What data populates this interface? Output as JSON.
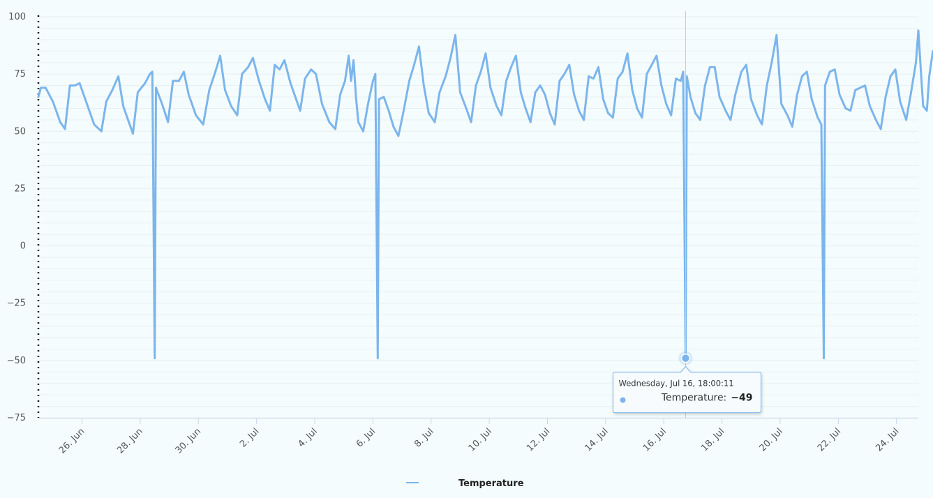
{
  "chart_data": {
    "type": "line",
    "title": "",
    "xlabel": "",
    "ylabel": "",
    "ylim": [
      -75,
      100
    ],
    "xlim": [
      "2025-06-24T12:00",
      "2025-07-24T18:00"
    ],
    "grid": true,
    "legend_position": "bottom-center",
    "yticks": [
      100,
      75,
      50,
      25,
      0,
      -25,
      -50,
      -75
    ],
    "ytick_labels": [
      "100",
      "75",
      "50",
      "25",
      "0",
      "−25",
      "−50",
      "−75"
    ],
    "xticks": [
      {
        "date": "2025-06-26",
        "label": "26. Jun"
      },
      {
        "date": "2025-06-28",
        "label": "28. Jun"
      },
      {
        "date": "2025-06-30",
        "label": "30. Jun"
      },
      {
        "date": "2025-07-02",
        "label": "2. Jul"
      },
      {
        "date": "2025-07-04",
        "label": "4. Jul"
      },
      {
        "date": "2025-07-06",
        "label": "6. Jul"
      },
      {
        "date": "2025-07-08",
        "label": "8. Jul"
      },
      {
        "date": "2025-07-10",
        "label": "10. Jul"
      },
      {
        "date": "2025-07-12",
        "label": "12. Jul"
      },
      {
        "date": "2025-07-14",
        "label": "14. Jul"
      },
      {
        "date": "2025-07-16",
        "label": "16. Jul"
      },
      {
        "date": "2025-07-18",
        "label": "18. Jul"
      },
      {
        "date": "2025-07-20",
        "label": "20. Jul"
      },
      {
        "date": "2025-07-22",
        "label": "22. Jul"
      },
      {
        "date": "2025-07-24",
        "label": "24. Jul"
      }
    ],
    "series": [
      {
        "name": "Temperature",
        "color": "#7cb5ec",
        "points": [
          [
            "2025-06-24T12:00",
            65
          ],
          [
            "2025-06-24T14:00",
            69
          ],
          [
            "2025-06-24T18:00",
            69
          ],
          [
            "2025-06-25T00:00",
            63
          ],
          [
            "2025-06-25T06:00",
            54
          ],
          [
            "2025-06-25T10:00",
            51
          ],
          [
            "2025-06-25T14:00",
            70
          ],
          [
            "2025-06-25T18:00",
            70
          ],
          [
            "2025-06-25T22:00",
            71
          ],
          [
            "2025-06-26T04:00",
            62
          ],
          [
            "2025-06-26T10:00",
            53
          ],
          [
            "2025-06-26T16:00",
            50
          ],
          [
            "2025-06-26T20:00",
            63
          ],
          [
            "2025-06-27T01:00",
            68
          ],
          [
            "2025-06-27T06:00",
            74
          ],
          [
            "2025-06-27T10:00",
            61
          ],
          [
            "2025-06-27T14:00",
            55
          ],
          [
            "2025-06-27T18:00",
            49
          ],
          [
            "2025-06-27T22:00",
            67
          ],
          [
            "2025-06-28T04:00",
            71
          ],
          [
            "2025-06-28T08:00",
            75
          ],
          [
            "2025-06-28T10:00",
            76
          ],
          [
            "2025-06-28T12:00",
            -49
          ],
          [
            "2025-06-28T13:00",
            69
          ],
          [
            "2025-06-28T18:00",
            62
          ],
          [
            "2025-06-28T23:00",
            54
          ],
          [
            "2025-06-29T03:00",
            72
          ],
          [
            "2025-06-29T08:00",
            72
          ],
          [
            "2025-06-29T12:00",
            76
          ],
          [
            "2025-06-29T16:00",
            66
          ],
          [
            "2025-06-29T22:00",
            57
          ],
          [
            "2025-06-30T04:00",
            53
          ],
          [
            "2025-06-30T09:00",
            68
          ],
          [
            "2025-06-30T14:00",
            76
          ],
          [
            "2025-06-30T18:00",
            83
          ],
          [
            "2025-06-30T22:00",
            68
          ],
          [
            "2025-07-01T03:00",
            61
          ],
          [
            "2025-07-01T08:00",
            57
          ],
          [
            "2025-07-01T12:00",
            75
          ],
          [
            "2025-07-01T17:00",
            78
          ],
          [
            "2025-07-01T21:00",
            82
          ],
          [
            "2025-07-02T02:00",
            72
          ],
          [
            "2025-07-02T07:00",
            64
          ],
          [
            "2025-07-02T11:00",
            59
          ],
          [
            "2025-07-02T15:00",
            79
          ],
          [
            "2025-07-02T19:00",
            77
          ],
          [
            "2025-07-02T23:00",
            81
          ],
          [
            "2025-07-03T04:00",
            71
          ],
          [
            "2025-07-03T08:00",
            65
          ],
          [
            "2025-07-03T12:00",
            59
          ],
          [
            "2025-07-03T16:00",
            73
          ],
          [
            "2025-07-03T21:00",
            77
          ],
          [
            "2025-07-04T01:00",
            75
          ],
          [
            "2025-07-04T06:00",
            62
          ],
          [
            "2025-07-04T12:00",
            54
          ],
          [
            "2025-07-04T17:00",
            51
          ],
          [
            "2025-07-04T21:00",
            66
          ],
          [
            "2025-07-05T01:00",
            72
          ],
          [
            "2025-07-05T04:00",
            83
          ],
          [
            "2025-07-05T06:00",
            72
          ],
          [
            "2025-07-05T08:00",
            81
          ],
          [
            "2025-07-05T10:00",
            65
          ],
          [
            "2025-07-05T12:00",
            54
          ],
          [
            "2025-07-05T16:00",
            50
          ],
          [
            "2025-07-05T20:00",
            62
          ],
          [
            "2025-07-06T00:00",
            72
          ],
          [
            "2025-07-06T02:00",
            75
          ],
          [
            "2025-07-06T04:00",
            -49
          ],
          [
            "2025-07-06T05:00",
            64
          ],
          [
            "2025-07-06T09:00",
            65
          ],
          [
            "2025-07-06T13:00",
            59
          ],
          [
            "2025-07-06T17:00",
            52
          ],
          [
            "2025-07-06T21:00",
            48
          ],
          [
            "2025-07-07T01:00",
            58
          ],
          [
            "2025-07-07T06:00",
            72
          ],
          [
            "2025-07-07T10:00",
            79
          ],
          [
            "2025-07-07T14:00",
            87
          ],
          [
            "2025-07-07T18:00",
            70
          ],
          [
            "2025-07-07T22:00",
            58
          ],
          [
            "2025-07-08T03:00",
            54
          ],
          [
            "2025-07-08T07:00",
            67
          ],
          [
            "2025-07-08T12:00",
            74
          ],
          [
            "2025-07-08T16:00",
            82
          ],
          [
            "2025-07-08T20:00",
            92
          ],
          [
            "2025-07-09T00:00",
            67
          ],
          [
            "2025-07-09T05:00",
            60
          ],
          [
            "2025-07-09T09:00",
            54
          ],
          [
            "2025-07-09T13:00",
            70
          ],
          [
            "2025-07-09T17:00",
            76
          ],
          [
            "2025-07-09T21:00",
            84
          ],
          [
            "2025-07-10T01:00",
            69
          ],
          [
            "2025-07-10T06:00",
            61
          ],
          [
            "2025-07-10T10:00",
            57
          ],
          [
            "2025-07-10T14:00",
            72
          ],
          [
            "2025-07-10T18:00",
            78
          ],
          [
            "2025-07-10T22:00",
            83
          ],
          [
            "2025-07-11T02:00",
            67
          ],
          [
            "2025-07-11T06:00",
            60
          ],
          [
            "2025-07-11T10:00",
            54
          ],
          [
            "2025-07-11T14:00",
            67
          ],
          [
            "2025-07-11T18:00",
            70
          ],
          [
            "2025-07-11T22:00",
            66
          ],
          [
            "2025-07-12T02:00",
            58
          ],
          [
            "2025-07-12T06:00",
            53
          ],
          [
            "2025-07-12T10:00",
            72
          ],
          [
            "2025-07-12T14:00",
            75
          ],
          [
            "2025-07-12T18:00",
            79
          ],
          [
            "2025-07-12T22:00",
            66
          ],
          [
            "2025-07-13T02:00",
            59
          ],
          [
            "2025-07-13T06:00",
            55
          ],
          [
            "2025-07-13T10:00",
            74
          ],
          [
            "2025-07-13T14:00",
            73
          ],
          [
            "2025-07-13T18:00",
            78
          ],
          [
            "2025-07-13T22:00",
            64
          ],
          [
            "2025-07-14T02:00",
            58
          ],
          [
            "2025-07-14T06:00",
            56
          ],
          [
            "2025-07-14T10:00",
            73
          ],
          [
            "2025-07-14T14:00",
            76
          ],
          [
            "2025-07-14T18:00",
            84
          ],
          [
            "2025-07-14T22:00",
            68
          ],
          [
            "2025-07-15T02:00",
            60
          ],
          [
            "2025-07-15T06:00",
            56
          ],
          [
            "2025-07-15T10:00",
            75
          ],
          [
            "2025-07-15T14:00",
            79
          ],
          [
            "2025-07-15T18:00",
            83
          ],
          [
            "2025-07-15T22:00",
            70
          ],
          [
            "2025-07-16T02:00",
            62
          ],
          [
            "2025-07-16T06:00",
            57
          ],
          [
            "2025-07-16T10:00",
            73
          ],
          [
            "2025-07-16T14:00",
            72
          ],
          [
            "2025-07-16T16:00",
            76
          ],
          [
            "2025-07-16T18:00",
            -49
          ],
          [
            "2025-07-16T19:00",
            74
          ],
          [
            "2025-07-16T22:00",
            65
          ],
          [
            "2025-07-17T02:00",
            58
          ],
          [
            "2025-07-17T06:00",
            55
          ],
          [
            "2025-07-17T10:00",
            70
          ],
          [
            "2025-07-17T14:00",
            78
          ],
          [
            "2025-07-17T18:00",
            78
          ],
          [
            "2025-07-17T22:00",
            65
          ],
          [
            "2025-07-18T03:00",
            59
          ],
          [
            "2025-07-18T07:00",
            55
          ],
          [
            "2025-07-18T11:00",
            66
          ],
          [
            "2025-07-18T16:00",
            76
          ],
          [
            "2025-07-18T20:00",
            79
          ],
          [
            "2025-07-19T00:00",
            64
          ],
          [
            "2025-07-19T05:00",
            57
          ],
          [
            "2025-07-19T09:00",
            53
          ],
          [
            "2025-07-19T13:00",
            70
          ],
          [
            "2025-07-19T17:00",
            80
          ],
          [
            "2025-07-19T21:00",
            92
          ],
          [
            "2025-07-20T01:00",
            62
          ],
          [
            "2025-07-20T06:00",
            57
          ],
          [
            "2025-07-20T10:00",
            52
          ],
          [
            "2025-07-20T14:00",
            66
          ],
          [
            "2025-07-20T18:00",
            74
          ],
          [
            "2025-07-20T22:00",
            76
          ],
          [
            "2025-07-21T02:00",
            64
          ],
          [
            "2025-07-21T07:00",
            56
          ],
          [
            "2025-07-21T10:00",
            53
          ],
          [
            "2025-07-21T12:00",
            -49
          ],
          [
            "2025-07-21T13:00",
            70
          ],
          [
            "2025-07-21T17:00",
            76
          ],
          [
            "2025-07-21T21:00",
            77
          ],
          [
            "2025-07-22T01:00",
            66
          ],
          [
            "2025-07-22T06:00",
            60
          ],
          [
            "2025-07-22T10:00",
            59
          ],
          [
            "2025-07-22T14:00",
            68
          ],
          [
            "2025-07-22T18:00",
            69
          ],
          [
            "2025-07-22T22:00",
            70
          ],
          [
            "2025-07-23T02:00",
            61
          ],
          [
            "2025-07-23T07:00",
            55
          ],
          [
            "2025-07-23T11:00",
            51
          ],
          [
            "2025-07-23T15:00",
            65
          ],
          [
            "2025-07-23T19:00",
            74
          ],
          [
            "2025-07-23T23:00",
            77
          ],
          [
            "2025-07-24T03:00",
            63
          ],
          [
            "2025-07-24T08:00",
            55
          ],
          [
            "2025-07-24T12:00",
            67
          ],
          [
            "2025-07-24T16:00",
            80
          ],
          [
            "2025-07-24T18:00",
            94
          ],
          [
            "2025-07-24T20:00",
            77
          ],
          [
            "2025-07-24T22:00",
            61
          ],
          [
            "2025-07-25T01:00",
            59
          ],
          [
            "2025-07-25T03:00",
            74
          ],
          [
            "2025-07-25T06:00",
            85
          ]
        ]
      }
    ]
  },
  "legend": {
    "label": "Temperature",
    "color": "#7cb5ec"
  },
  "tooltip": {
    "time": "Wednesday, Jul 16, 18:00:11",
    "series_label": "Temperature:",
    "value": "−49",
    "point_date": "2025-07-16T18:00",
    "point_value": -49,
    "marker_color": "#7cb5ec"
  },
  "colors": {
    "background": "#f4fcfd",
    "grid": "#e6eef2",
    "axis": "#ccd6eb",
    "line": "#7cb5ec",
    "crosshair": "#cccccc"
  }
}
